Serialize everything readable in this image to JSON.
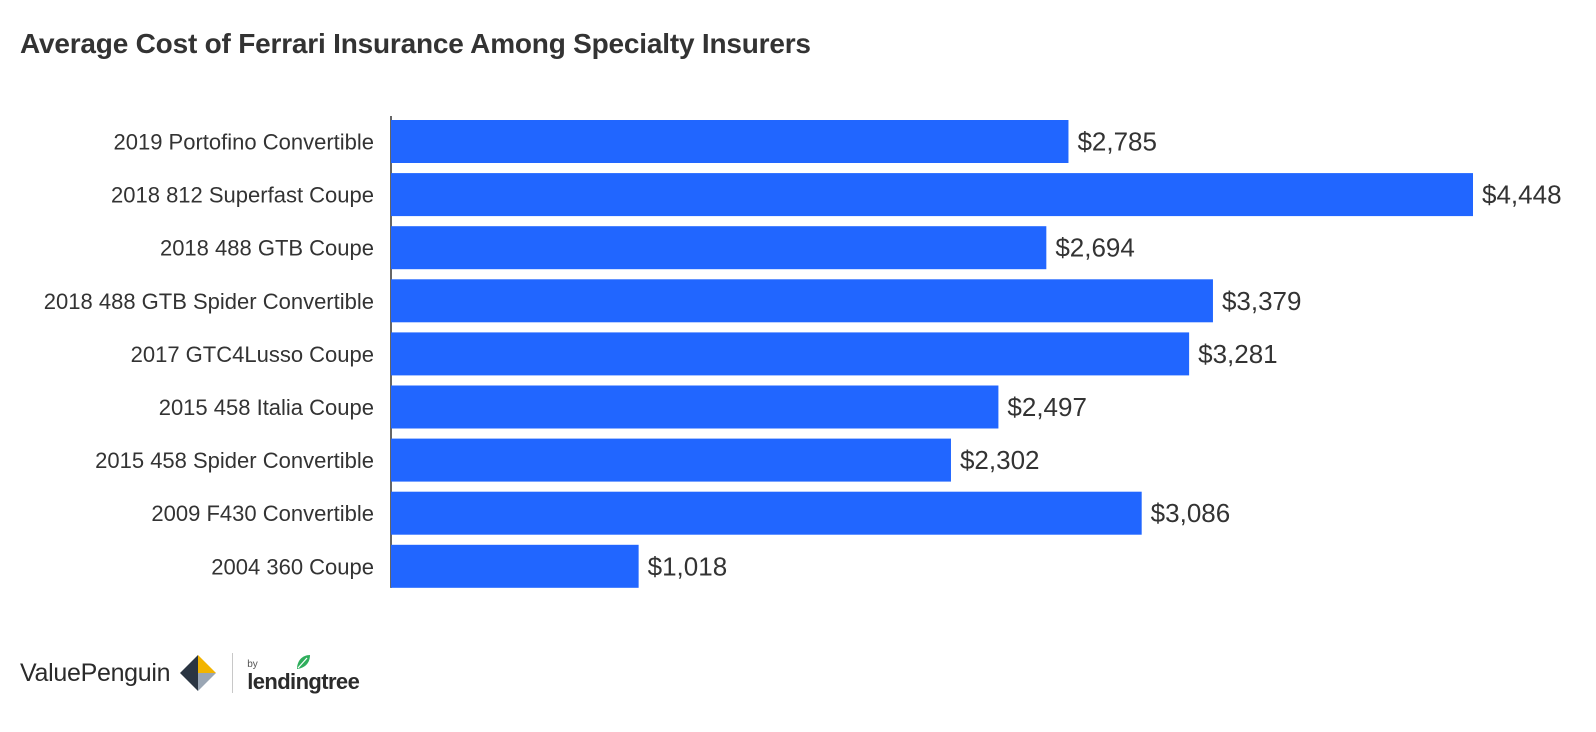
{
  "chart_data": {
    "type": "bar",
    "orientation": "horizontal",
    "title": "Average Cost of Ferrari Insurance Among Specialty Insurers",
    "categories": [
      "2019 Portofino Convertible",
      "2018 812 Superfast Coupe",
      "2018 488 GTB Coupe",
      "2018 488 GTB Spider Convertible",
      "2017 GTC4Lusso Coupe",
      "2015 458 Italia Coupe",
      "2015 458 Spider Convertible",
      "2009 F430 Convertible",
      "2004 360 Coupe"
    ],
    "values": [
      2785,
      4448,
      2694,
      3379,
      3281,
      2497,
      2302,
      3086,
      1018
    ],
    "value_labels": [
      "$2,785",
      "$4,448",
      "$2,694",
      "$3,379",
      "$3,281",
      "$2,497",
      "$2,302",
      "$3,086",
      "$1,018"
    ],
    "xlim": [
      0,
      4448
    ],
    "bar_color": "#2166ff",
    "xlabel": "",
    "ylabel": "",
    "grid": false
  },
  "footer": {
    "brand": "ValuePenguin",
    "by": "by",
    "partner": "lendingtree",
    "brand_icon": "valuepenguin-logo-icon",
    "partner_icon": "lendingtree-leaf-icon"
  }
}
